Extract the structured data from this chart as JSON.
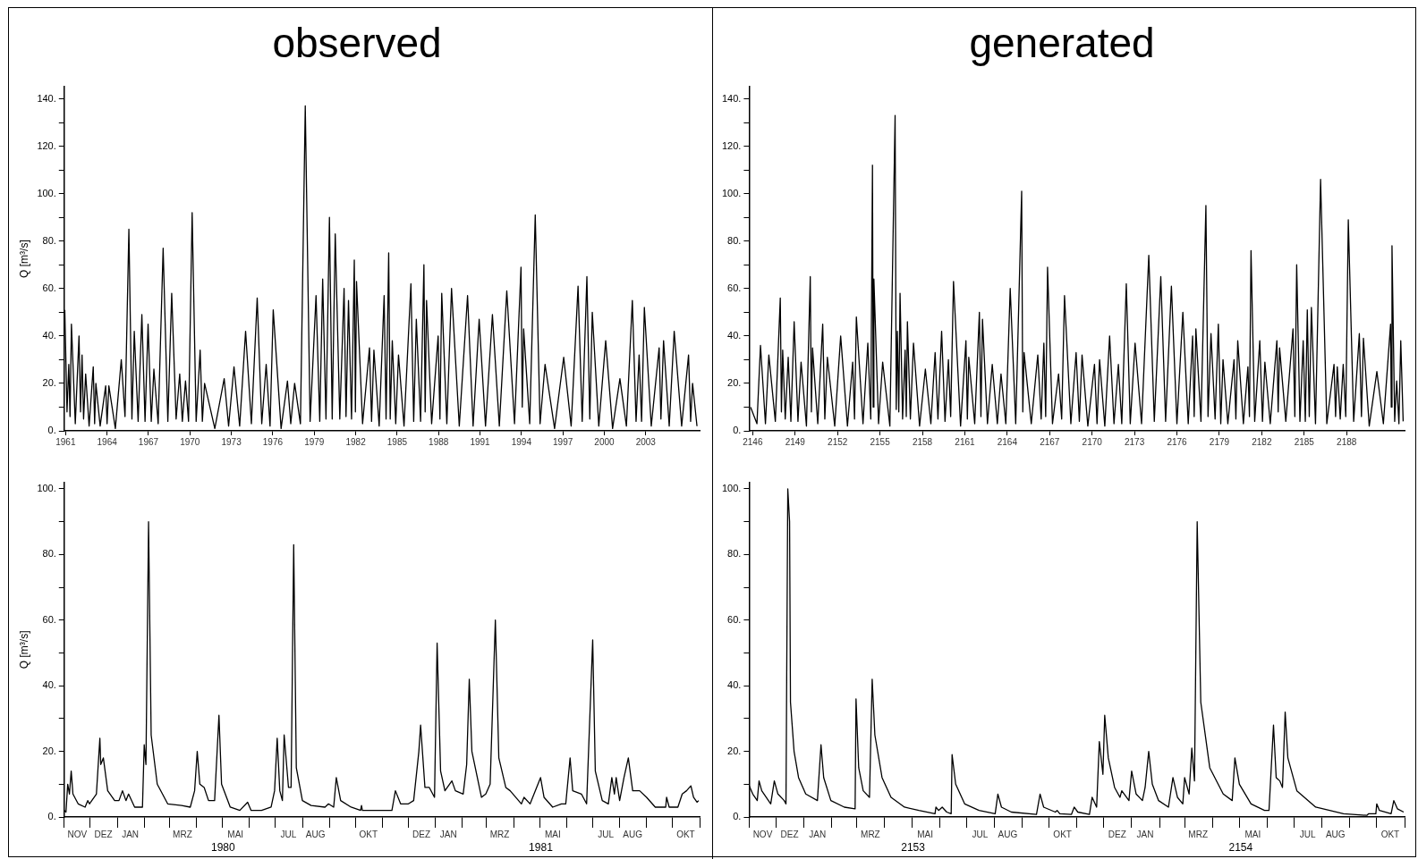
{
  "chart_data": [
    {
      "type": "line",
      "title": "observed",
      "ylabel": "Q [m³/s]",
      "color": "#000000",
      "x": [
        1960.94,
        1961.1,
        1961.23,
        1961.32,
        1961.42,
        1961.7,
        1961.97,
        1962.08,
        1962.19,
        1962.3,
        1962.45,
        1962.7,
        1963.0,
        1963.1,
        1963.19,
        1963.5,
        1963.9,
        1964.0,
        1964.13,
        1964.6,
        1965.03,
        1965.3,
        1965.58,
        1965.8,
        1965.97,
        1966.25,
        1966.52,
        1966.75,
        1966.97,
        1967.2,
        1967.39,
        1967.7,
        1968.06,
        1968.4,
        1968.68,
        1969.0,
        1969.26,
        1969.45,
        1969.68,
        1969.9,
        1970.16,
        1970.45,
        1970.74,
        1970.9,
        1971.06,
        1971.8,
        1972.48,
        1972.8,
        1973.19,
        1973.6,
        1974.03,
        1974.45,
        1974.87,
        1975.2,
        1975.52,
        1975.8,
        1976.03,
        1976.6,
        1977.06,
        1977.3,
        1977.58,
        1978.0,
        1978.35,
        1978.7,
        1979.13,
        1979.4,
        1979.61,
        1979.85,
        1980.1,
        1980.3,
        1980.52,
        1980.85,
        1981.16,
        1981.3,
        1981.48,
        1981.7,
        1981.9,
        1981.98,
        1982.06,
        1982.5,
        1983.0,
        1983.15,
        1983.32,
        1983.7,
        1984.06,
        1984.2,
        1984.39,
        1984.5,
        1984.65,
        1984.9,
        1985.1,
        1985.5,
        1986.0,
        1986.2,
        1986.39,
        1986.7,
        1986.94,
        1987.03,
        1987.13,
        1987.5,
        1987.97,
        1988.1,
        1988.23,
        1988.6,
        1988.94,
        1989.5,
        1990.1,
        1990.5,
        1990.94,
        1991.4,
        1991.9,
        1992.4,
        1992.94,
        1993.5,
        1993.97,
        1994.06,
        1994.16,
        1994.6,
        1995.0,
        1995.35,
        1995.71,
        1996.4,
        1997.06,
        1997.6,
        1998.1,
        1998.4,
        1998.74,
        1998.95,
        1999.13,
        1999.6,
        2000.1,
        2000.6,
        2001.13,
        2001.6,
        2002.03,
        2002.3,
        2002.52,
        2002.7,
        2002.9,
        2003.4,
        2003.97,
        2004.1,
        2004.29,
        2004.7,
        2005.06,
        2005.6,
        2006.1,
        2006.25,
        2006.39,
        2006.71
      ],
      "values": [
        51,
        8,
        28,
        6,
        45,
        3,
        40,
        8,
        32,
        5,
        24,
        2,
        27,
        3,
        20,
        2,
        19,
        3,
        19,
        1,
        30,
        6,
        85,
        5,
        42,
        4,
        49,
        4,
        45,
        4,
        26,
        3,
        77,
        4,
        58,
        5,
        24,
        4,
        21,
        4,
        92,
        4,
        34,
        4,
        20,
        1,
        22,
        2,
        27,
        2,
        42,
        3,
        56,
        3,
        28,
        2,
        51,
        1,
        21,
        3,
        20,
        3,
        137,
        4,
        57,
        4,
        64,
        5,
        90,
        5,
        83,
        5,
        60,
        6,
        55,
        5,
        72,
        8,
        63,
        3,
        35,
        4,
        34,
        2,
        57,
        5,
        75,
        5,
        38,
        3,
        32,
        2,
        62,
        4,
        47,
        4,
        70,
        8,
        55,
        3,
        40,
        5,
        58,
        3,
        60,
        2,
        57,
        2,
        47,
        2,
        49,
        2,
        59,
        3,
        69,
        10,
        43,
        3,
        91,
        3,
        28,
        1,
        31,
        2,
        61,
        4,
        65,
        5,
        50,
        2,
        38,
        1,
        22,
        2,
        55,
        4,
        32,
        4,
        52,
        2,
        35,
        5,
        38,
        2,
        42,
        2,
        32,
        4,
        20,
        2
      ],
      "xlim": [
        1960.9,
        2006.9
      ],
      "xticks": [
        1961,
        1964,
        1967,
        1970,
        1973,
        1976,
        1979,
        1982,
        1985,
        1988,
        1991,
        1994,
        1997,
        2000,
        2003
      ],
      "ylim": [
        0,
        145
      ],
      "yticks": [
        {
          "value": 0,
          "label": "0."
        },
        {
          "value": 10,
          "label": null
        },
        {
          "value": 20,
          "label": "20."
        },
        {
          "value": 30,
          "label": null
        },
        {
          "value": 40,
          "label": "40."
        },
        {
          "value": 50,
          "label": null
        },
        {
          "value": 60,
          "label": "60."
        },
        {
          "value": 70,
          "label": null
        },
        {
          "value": 80,
          "label": "80."
        },
        {
          "value": 90,
          "label": null
        },
        {
          "value": 100,
          "label": "100."
        },
        {
          "value": 110,
          "label": null
        },
        {
          "value": 120,
          "label": "120."
        },
        {
          "value": 130,
          "label": null
        },
        {
          "value": 140,
          "label": "140."
        }
      ]
    },
    {
      "type": "line",
      "title": "generated",
      "color": "#000000",
      "x": [
        2145.85,
        2146.3,
        2146.55,
        2146.9,
        2147.14,
        2147.6,
        2147.95,
        2148.03,
        2148.12,
        2148.3,
        2148.51,
        2148.7,
        2148.93,
        2149.2,
        2149.42,
        2149.8,
        2150.07,
        2150.15,
        2150.23,
        2150.6,
        2150.95,
        2151.1,
        2151.28,
        2151.8,
        2152.22,
        2152.7,
        2153.07,
        2153.2,
        2153.33,
        2153.8,
        2154.14,
        2154.35,
        2154.47,
        2154.52,
        2154.57,
        2154.9,
        2155.19,
        2155.7,
        2156.07,
        2156.15,
        2156.23,
        2156.33,
        2156.42,
        2156.6,
        2156.78,
        2156.86,
        2156.94,
        2157.15,
        2157.37,
        2157.8,
        2158.21,
        2158.6,
        2158.9,
        2159.1,
        2159.36,
        2159.6,
        2159.84,
        2160.0,
        2160.2,
        2160.7,
        2161.08,
        2161.18,
        2161.28,
        2161.7,
        2162.03,
        2162.14,
        2162.25,
        2162.6,
        2162.94,
        2163.3,
        2163.56,
        2163.9,
        2164.21,
        2164.6,
        2165.02,
        2165.1,
        2165.19,
        2165.7,
        2166.16,
        2166.4,
        2166.59,
        2166.72,
        2166.85,
        2167.2,
        2167.63,
        2167.85,
        2168.05,
        2168.5,
        2168.87,
        2169.1,
        2169.29,
        2169.7,
        2170.17,
        2170.35,
        2170.53,
        2170.9,
        2171.24,
        2171.55,
        2171.86,
        2172.1,
        2172.42,
        2172.7,
        2173.04,
        2173.5,
        2174.01,
        2174.4,
        2174.86,
        2175.2,
        2175.61,
        2176.0,
        2176.42,
        2176.8,
        2177.11,
        2177.22,
        2177.34,
        2177.7,
        2178.05,
        2178.2,
        2178.41,
        2178.7,
        2178.93,
        2179.1,
        2179.26,
        2179.6,
        2180.04,
        2180.17,
        2180.3,
        2180.7,
        2181.02,
        2181.13,
        2181.24,
        2181.5,
        2181.86,
        2182.05,
        2182.22,
        2182.6,
        2183.07,
        2183.16,
        2183.26,
        2183.7,
        2184.21,
        2184.34,
        2184.47,
        2184.7,
        2184.93,
        2185.08,
        2185.22,
        2185.36,
        2185.51,
        2185.8,
        2186.16,
        2186.6,
        2187.11,
        2187.22,
        2187.34,
        2187.55,
        2187.76,
        2187.94,
        2188.12,
        2188.5,
        2188.9,
        2189.05,
        2189.19,
        2189.6,
        2190.14,
        2190.6,
        2191.11,
        2191.16,
        2191.21,
        2191.4,
        2191.54,
        2191.7,
        2191.83,
        2192.0
      ],
      "values": [
        10,
        3,
        36,
        3,
        32,
        4,
        56,
        8,
        34,
        5,
        31,
        4,
        46,
        4,
        29,
        2,
        65,
        8,
        35,
        3,
        45,
        5,
        31,
        2,
        40,
        2,
        29,
        5,
        48,
        3,
        37,
        5,
        112,
        10,
        64,
        3,
        29,
        2,
        133,
        9,
        42,
        8,
        58,
        5,
        34,
        6,
        46,
        5,
        37,
        2,
        26,
        3,
        33,
        5,
        42,
        4,
        30,
        6,
        63,
        2,
        38,
        5,
        31,
        3,
        50,
        6,
        47,
        3,
        28,
        3,
        24,
        3,
        60,
        3,
        101,
        8,
        33,
        3,
        32,
        5,
        37,
        6,
        69,
        3,
        24,
        5,
        57,
        3,
        33,
        4,
        32,
        2,
        28,
        3,
        30,
        2,
        40,
        3,
        28,
        3,
        62,
        3,
        37,
        3,
        74,
        4,
        65,
        4,
        61,
        3,
        50,
        3,
        40,
        6,
        43,
        4,
        95,
        6,
        41,
        5,
        45,
        3,
        30,
        3,
        30,
        5,
        38,
        3,
        27,
        6,
        76,
        4,
        38,
        4,
        29,
        3,
        38,
        8,
        35,
        4,
        43,
        6,
        70,
        4,
        38,
        4,
        51,
        6,
        52,
        3,
        106,
        3,
        28,
        6,
        27,
        5,
        28,
        6,
        89,
        4,
        41,
        6,
        39,
        2,
        25,
        3,
        45,
        10,
        78,
        4,
        21,
        3,
        38,
        4
      ],
      "xlim": [
        2145.75,
        2192.1
      ],
      "xticks": [
        2146,
        2149,
        2152,
        2155,
        2158,
        2161,
        2164,
        2167,
        2170,
        2173,
        2176,
        2179,
        2182,
        2185,
        2188
      ],
      "ylim": [
        0,
        145
      ],
      "yticks": [
        {
          "value": 0,
          "label": "0."
        },
        {
          "value": 10,
          "label": null
        },
        {
          "value": 20,
          "label": "20."
        },
        {
          "value": 30,
          "label": null
        },
        {
          "value": 40,
          "label": "40."
        },
        {
          "value": 50,
          "label": null
        },
        {
          "value": 60,
          "label": "60."
        },
        {
          "value": 70,
          "label": null
        },
        {
          "value": 80,
          "label": "80."
        },
        {
          "value": 90,
          "label": null
        },
        {
          "value": 100,
          "label": "100."
        },
        {
          "value": 110,
          "label": null
        },
        {
          "value": 120,
          "label": "120."
        },
        {
          "value": 130,
          "label": null
        },
        {
          "value": 140,
          "label": "140."
        }
      ]
    },
    {
      "type": "line",
      "ylabel": "Q [m³/s]",
      "color": "#000000",
      "x": [
        "1979-11-01",
        "1979-11-03",
        "1979-11-05",
        "1979-11-07",
        "1979-11-09",
        "1979-11-11",
        "1979-11-17",
        "1979-11-25",
        "1979-11-28",
        "1979-11-30",
        "1979-12-08",
        "1979-12-12",
        "1979-12-13",
        "1979-12-16",
        "1979-12-21",
        "1979-12-29",
        "1980-01-03",
        "1980-01-07",
        "1980-01-11",
        "1980-01-14",
        "1980-01-21",
        "1980-01-30",
        "1980-02-01",
        "1980-02-03",
        "1980-02-06",
        "1980-02-09",
        "1980-02-16",
        "1980-02-28",
        "1980-03-15",
        "1980-03-25",
        "1980-03-30",
        "1980-04-02",
        "1980-04-05",
        "1980-04-10",
        "1980-04-15",
        "1980-04-22",
        "1980-04-27",
        "1980-04-30",
        "1980-05-10",
        "1980-05-21",
        "1980-05-30",
        "1980-06-03",
        "1980-06-15",
        "1980-06-26",
        "1980-06-30",
        "1980-07-03",
        "1980-07-06",
        "1980-07-09",
        "1980-07-11",
        "1980-07-16",
        "1980-07-19",
        "1980-07-22",
        "1980-07-25",
        "1980-08-01",
        "1980-08-11",
        "1980-08-27",
        "1980-08-31",
        "1980-09-06",
        "1980-09-09",
        "1980-09-14",
        "1980-09-26",
        "1980-10-07",
        "1980-10-08",
        "1980-10-09",
        "1980-10-27",
        "1980-11-12",
        "1980-11-16",
        "1980-11-22",
        "1980-12-01",
        "1980-12-07",
        "1980-12-13",
        "1980-12-15",
        "1980-12-20",
        "1980-12-25",
        "1980-12-31",
        "1981-01-03",
        "1981-01-07",
        "1981-01-12",
        "1981-01-20",
        "1981-01-24",
        "1981-02-02",
        "1981-02-06",
        "1981-02-09",
        "1981-02-12",
        "1981-02-23",
        "1981-02-28",
        "1981-03-05",
        "1981-03-11",
        "1981-03-15",
        "1981-03-23",
        "1981-03-28",
        "1981-04-10",
        "1981-04-13",
        "1981-04-20",
        "1981-05-02",
        "1981-05-06",
        "1981-05-16",
        "1981-05-26",
        "1981-05-31",
        "1981-06-05",
        "1981-06-08",
        "1981-06-18",
        "1981-06-24",
        "1981-07-01",
        "1981-07-04",
        "1981-07-12",
        "1981-07-19",
        "1981-07-23",
        "1981-07-26",
        "1981-07-28",
        "1981-08-01",
        "1981-08-06",
        "1981-08-11",
        "1981-08-16",
        "1981-08-24",
        "1981-09-01",
        "1981-09-11",
        "1981-09-23",
        "1981-09-24",
        "1981-09-27",
        "1981-10-07",
        "1981-10-12",
        "1981-10-17",
        "1981-10-22",
        "1981-10-25",
        "1981-10-29",
        "1981-10-31"
      ],
      "values": [
        2,
        1.5,
        10,
        7,
        14,
        7,
        4,
        3,
        5,
        4,
        7,
        24,
        16,
        18,
        8,
        5,
        5,
        8,
        5,
        7,
        3,
        3,
        22,
        16,
        90,
        25,
        10,
        4,
        3.5,
        3,
        8,
        20,
        10,
        9,
        5,
        5,
        31,
        10,
        3,
        2,
        4.5,
        2,
        2,
        3,
        8,
        24,
        8,
        5,
        25,
        9,
        9,
        83,
        15,
        5,
        3.5,
        3,
        4,
        3,
        12,
        5,
        3,
        2,
        3.5,
        2,
        2,
        2,
        8,
        4,
        4,
        5,
        20,
        28,
        9,
        9,
        6,
        53,
        14,
        8,
        11,
        8,
        7,
        16,
        42,
        20,
        6,
        7,
        10,
        60,
        18,
        9,
        8,
        4,
        6,
        4,
        12,
        6,
        3,
        4,
        4,
        18,
        8,
        7,
        4,
        54,
        14,
        5,
        4,
        12,
        7,
        12,
        5,
        12,
        18,
        8,
        8,
        6,
        3,
        3,
        6,
        3,
        3,
        7,
        8,
        9.5,
        6,
        4.5,
        5
      ],
      "xlim": [
        "1979-11-01",
        "1981-11-01"
      ],
      "xticks": [
        {
          "value": "1979-11-01",
          "label": null
        },
        {
          "value": "1979-11-16",
          "label": "NOV"
        },
        {
          "value": "1979-12-01",
          "label": null
        },
        {
          "value": "1979-12-16",
          "label": "DEZ"
        },
        {
          "value": "1980-01-01",
          "label": null
        },
        {
          "value": "1980-01-16",
          "label": "JAN"
        },
        {
          "value": "1980-02-01",
          "label": null
        },
        {
          "value": "1980-03-01",
          "label": null
        },
        {
          "value": "1980-03-16",
          "label": "MRZ"
        },
        {
          "value": "1980-04-01",
          "label": null
        },
        {
          "value": "1980-05-01",
          "label": null
        },
        {
          "value": "1980-05-16",
          "label": "MAI"
        },
        {
          "value": "1980-06-01",
          "label": null
        },
        {
          "value": "1980-07-01",
          "label": null
        },
        {
          "value": "1980-07-16",
          "label": "JUL"
        },
        {
          "value": "1980-08-01",
          "label": null
        },
        {
          "value": "1980-08-16",
          "label": "AUG"
        },
        {
          "value": "1980-09-01",
          "label": null
        },
        {
          "value": "1980-10-01",
          "label": null
        },
        {
          "value": "1980-10-16",
          "label": "OKT"
        },
        {
          "value": "1980-11-01",
          "label": null
        },
        {
          "value": "1980-12-01",
          "label": null
        },
        {
          "value": "1980-12-16",
          "label": "DEZ"
        },
        {
          "value": "1981-01-01",
          "label": null
        },
        {
          "value": "1981-01-16",
          "label": "JAN"
        },
        {
          "value": "1981-02-01",
          "label": null
        },
        {
          "value": "1981-03-01",
          "label": null
        },
        {
          "value": "1981-03-16",
          "label": "MRZ"
        },
        {
          "value": "1981-04-01",
          "label": null
        },
        {
          "value": "1981-05-01",
          "label": null
        },
        {
          "value": "1981-05-16",
          "label": "MAI"
        },
        {
          "value": "1981-06-01",
          "label": null
        },
        {
          "value": "1981-07-01",
          "label": null
        },
        {
          "value": "1981-07-16",
          "label": "JUL"
        },
        {
          "value": "1981-08-01",
          "label": null
        },
        {
          "value": "1981-08-16",
          "label": "AUG"
        },
        {
          "value": "1981-09-01",
          "label": null
        },
        {
          "value": "1981-10-01",
          "label": null
        },
        {
          "value": "1981-10-16",
          "label": "OKT"
        },
        {
          "value": "1981-11-01",
          "label": null
        }
      ],
      "ylim": [
        0,
        102
      ],
      "yticks": [
        {
          "value": 0,
          "label": "0."
        },
        {
          "value": 10,
          "label": null
        },
        {
          "value": 20,
          "label": "20."
        },
        {
          "value": 30,
          "label": null
        },
        {
          "value": 40,
          "label": "40."
        },
        {
          "value": 50,
          "label": null
        },
        {
          "value": 60,
          "label": "60."
        },
        {
          "value": 70,
          "label": null
        },
        {
          "value": 80,
          "label": "80."
        },
        {
          "value": 90,
          "label": null
        },
        {
          "value": 100,
          "label": "100."
        }
      ],
      "annotations": [
        "1980",
        "1981"
      ]
    },
    {
      "type": "line",
      "color": "#000000",
      "x": [
        "2152-11-01",
        "2152-11-05",
        "2152-11-10",
        "2152-11-12",
        "2152-11-15",
        "2152-11-25",
        "2152-11-29",
        "2152-12-03",
        "2152-12-10",
        "2152-12-12",
        "2152-12-14",
        "2152-12-16",
        "2152-12-17",
        "2152-12-21",
        "2152-12-26",
        "2153-01-03",
        "2153-01-16",
        "2153-01-20",
        "2153-01-23",
        "2153-01-31",
        "2153-02-15",
        "2153-02-27",
        "2153-02-28",
        "2153-03-03",
        "2153-03-08",
        "2153-03-15",
        "2153-03-18",
        "2153-03-21",
        "2153-03-29",
        "2153-04-08",
        "2153-04-23",
        "2153-05-09",
        "2153-05-27",
        "2153-05-28",
        "2153-05-31",
        "2153-06-04",
        "2153-06-09",
        "2153-06-14",
        "2153-06-15",
        "2153-06-19",
        "2153-06-29",
        "2153-07-15",
        "2153-08-02",
        "2153-08-05",
        "2153-08-09",
        "2153-08-20",
        "2153-09-17",
        "2153-09-21",
        "2153-09-25",
        "2153-10-08",
        "2153-10-10",
        "2153-10-13",
        "2153-10-26",
        "2153-10-29",
        "2153-11-02",
        "2153-11-15",
        "2153-11-18",
        "2153-11-23",
        "2153-11-26",
        "2153-11-30",
        "2153-12-02",
        "2153-12-06",
        "2153-12-13",
        "2153-12-19",
        "2153-12-21",
        "2153-12-29",
        "2154-01-01",
        "2154-01-06",
        "2154-01-13",
        "2154-01-16",
        "2154-01-20",
        "2154-01-24",
        "2154-01-31",
        "2154-02-11",
        "2154-02-16",
        "2154-02-21",
        "2154-02-27",
        "2154-03-01",
        "2154-03-06",
        "2154-03-09",
        "2154-03-12",
        "2154-03-15",
        "2154-03-19",
        "2154-03-29",
        "2154-04-13",
        "2154-04-23",
        "2154-04-26",
        "2154-05-01",
        "2154-05-14",
        "2154-05-29",
        "2154-06-03",
        "2154-06-08",
        "2154-06-11",
        "2154-06-15",
        "2154-06-18",
        "2154-06-21",
        "2154-06-24",
        "2154-07-04",
        "2154-07-25",
        "2154-08-25",
        "2154-09-20",
        "2154-09-22",
        "2154-09-30",
        "2154-10-01",
        "2154-10-04",
        "2154-10-17",
        "2154-10-20",
        "2154-10-24",
        "2154-10-31"
      ],
      "values": [
        9.5,
        7,
        5,
        11,
        8,
        4,
        11,
        7,
        5,
        4,
        100,
        90,
        35,
        20,
        12,
        7,
        5,
        22,
        12,
        5,
        3,
        2.5,
        36,
        15,
        8,
        6,
        42,
        25,
        12,
        6,
        3,
        2,
        1,
        3,
        2,
        3,
        1.5,
        1,
        19,
        10,
        4,
        2,
        1,
        7,
        3,
        1.5,
        0.8,
        7,
        3,
        1.5,
        2,
        1,
        0.8,
        3,
        1.5,
        0.8,
        6,
        3,
        23,
        13,
        31,
        18,
        9,
        6,
        8,
        5,
        14,
        7,
        5,
        9,
        20,
        10,
        5,
        3,
        12,
        6,
        4,
        12,
        7,
        21,
        11,
        90,
        35,
        15,
        7,
        5,
        18,
        10,
        4,
        2,
        2,
        28,
        12,
        11,
        9,
        32,
        18,
        8,
        3,
        1,
        0.5,
        1,
        1,
        4,
        2,
        1,
        5,
        2.5,
        1.5
      ],
      "xlim": [
        "2152-11-01",
        "2154-11-01"
      ],
      "xticks": [
        {
          "value": "2152-11-01",
          "label": null
        },
        {
          "value": "2152-11-16",
          "label": "NOV"
        },
        {
          "value": "2152-12-01",
          "label": null
        },
        {
          "value": "2152-12-16",
          "label": "DEZ"
        },
        {
          "value": "2153-01-01",
          "label": null
        },
        {
          "value": "2153-01-16",
          "label": "JAN"
        },
        {
          "value": "2153-02-01",
          "label": null
        },
        {
          "value": "2153-03-01",
          "label": null
        },
        {
          "value": "2153-03-16",
          "label": "MRZ"
        },
        {
          "value": "2153-04-01",
          "label": null
        },
        {
          "value": "2153-05-01",
          "label": null
        },
        {
          "value": "2153-05-16",
          "label": "MAI"
        },
        {
          "value": "2153-06-01",
          "label": null
        },
        {
          "value": "2153-07-01",
          "label": null
        },
        {
          "value": "2153-07-16",
          "label": "JUL"
        },
        {
          "value": "2153-08-01",
          "label": null
        },
        {
          "value": "2153-08-16",
          "label": "AUG"
        },
        {
          "value": "2153-09-01",
          "label": null
        },
        {
          "value": "2153-10-01",
          "label": null
        },
        {
          "value": "2153-10-16",
          "label": "OKT"
        },
        {
          "value": "2153-11-01",
          "label": null
        },
        {
          "value": "2153-12-01",
          "label": null
        },
        {
          "value": "2153-12-16",
          "label": "DEZ"
        },
        {
          "value": "2154-01-01",
          "label": null
        },
        {
          "value": "2154-01-16",
          "label": "JAN"
        },
        {
          "value": "2154-02-01",
          "label": null
        },
        {
          "value": "2154-03-01",
          "label": null
        },
        {
          "value": "2154-03-16",
          "label": "MRZ"
        },
        {
          "value": "2154-04-01",
          "label": null
        },
        {
          "value": "2154-05-01",
          "label": null
        },
        {
          "value": "2154-05-16",
          "label": "MAI"
        },
        {
          "value": "2154-06-01",
          "label": null
        },
        {
          "value": "2154-07-01",
          "label": null
        },
        {
          "value": "2154-07-16",
          "label": "JUL"
        },
        {
          "value": "2154-08-01",
          "label": null
        },
        {
          "value": "2154-08-16",
          "label": "AUG"
        },
        {
          "value": "2154-09-01",
          "label": null
        },
        {
          "value": "2154-10-01",
          "label": null
        },
        {
          "value": "2154-10-16",
          "label": "OKT"
        },
        {
          "value": "2154-11-01",
          "label": null
        }
      ],
      "ylim": [
        0,
        102
      ],
      "yticks": [
        {
          "value": 0,
          "label": "0."
        },
        {
          "value": 10,
          "label": null
        },
        {
          "value": 20,
          "label": "20."
        },
        {
          "value": 30,
          "label": null
        },
        {
          "value": 40,
          "label": "40."
        },
        {
          "value": 50,
          "label": null
        },
        {
          "value": 60,
          "label": "60."
        },
        {
          "value": 70,
          "label": null
        },
        {
          "value": 80,
          "label": "80."
        },
        {
          "value": 90,
          "label": null
        },
        {
          "value": 100,
          "label": "100."
        }
      ],
      "annotations": [
        "2153",
        "2154"
      ]
    }
  ]
}
